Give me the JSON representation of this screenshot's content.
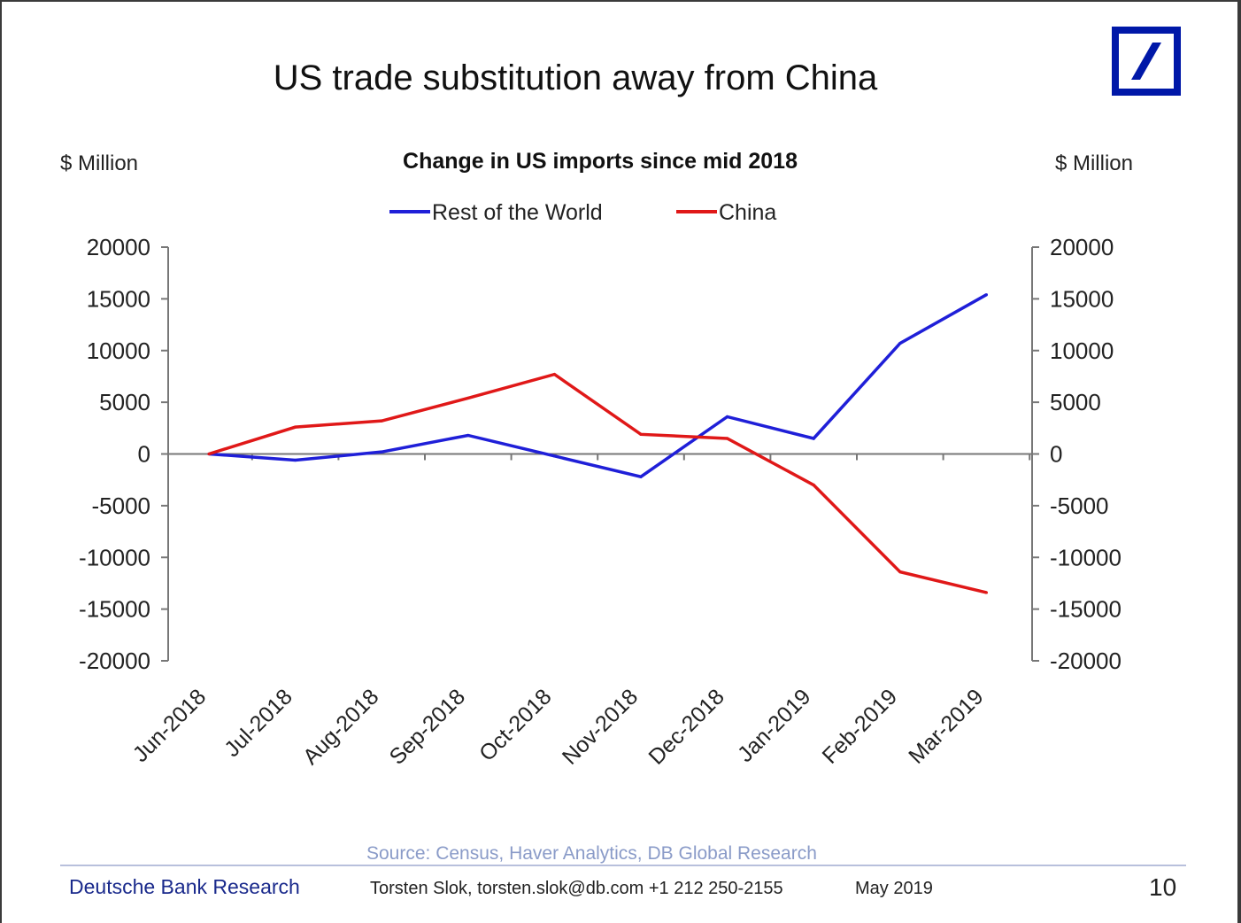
{
  "page": {
    "title": "US trade substitution away from China",
    "logo_color": "#0018a8",
    "source": "Source: Census, Haver Analytics, DB Global Research",
    "footer": {
      "brand": "Deutsche Bank Research",
      "author": "Torsten Slok, torsten.slok@db.com  +1 212 250-2155",
      "date": "May 2019",
      "page_number": "10"
    }
  },
  "chart_data": {
    "type": "line",
    "title": "Change in US imports since mid 2018",
    "ylabel_left": "$ Million",
    "ylabel_right": "$ Million",
    "categories": [
      "Jun-2018",
      "Jul-2018",
      "Aug-2018",
      "Sep-2018",
      "Oct-2018",
      "Nov-2018",
      "Dec-2018",
      "Jan-2019",
      "Feb-2019",
      "Mar-2019"
    ],
    "series": [
      {
        "name": "Rest of the World",
        "color": "#1f1fd8",
        "values": [
          0,
          -600,
          200,
          1800,
          -200,
          -2200,
          3600,
          1500,
          10700,
          15400
        ]
      },
      {
        "name": "China",
        "color": "#e01818",
        "values": [
          0,
          2600,
          3200,
          5400,
          7700,
          1900,
          1500,
          -3000,
          -11400,
          -13400
        ]
      }
    ],
    "ylim": [
      -20000,
      20000
    ],
    "yticks": [
      20000,
      15000,
      10000,
      5000,
      0,
      -5000,
      -10000,
      -15000,
      -20000
    ],
    "legend_position": "top-center",
    "grid": false
  }
}
